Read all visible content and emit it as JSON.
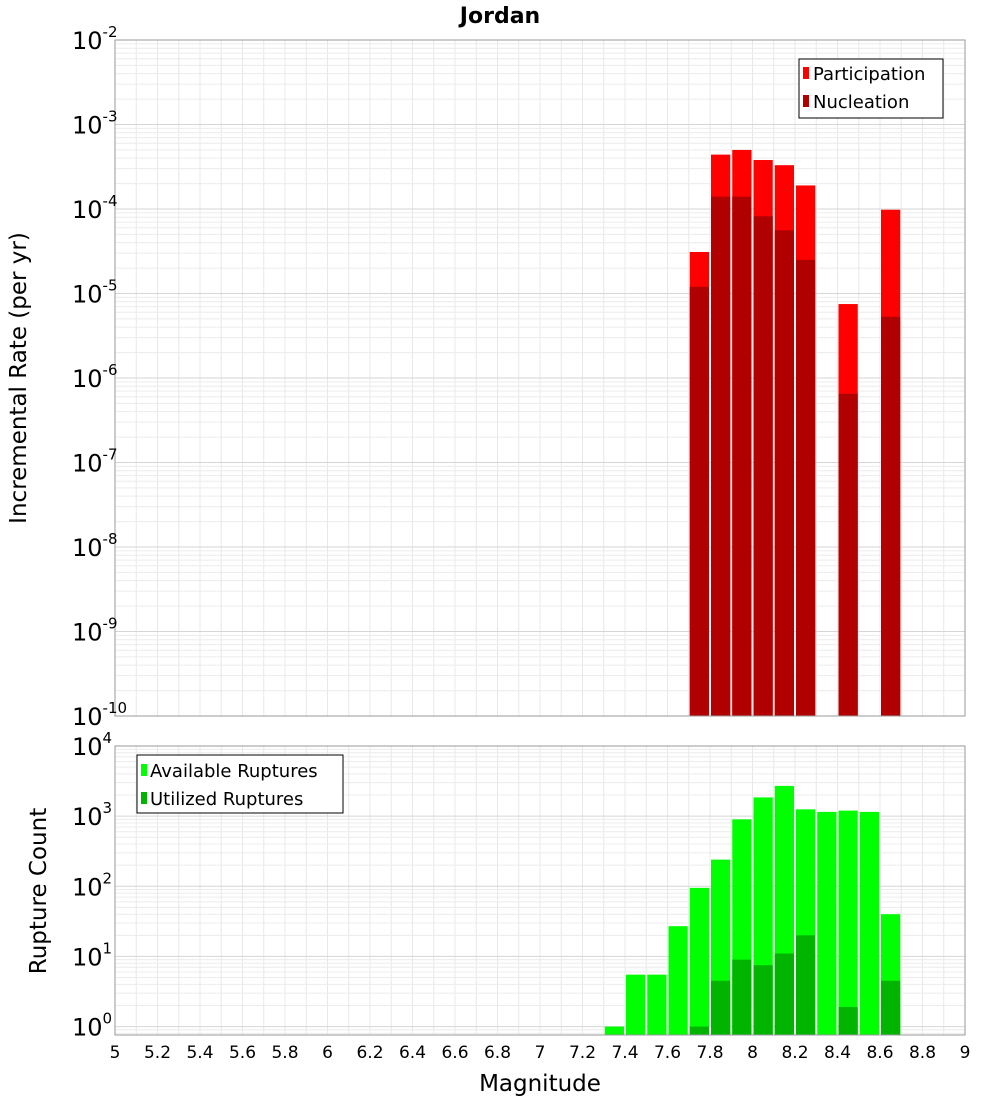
{
  "chart_data": [
    {
      "type": "bar",
      "title": "Jordan",
      "xlabel": "Magnitude",
      "ylabel": "Incremental Rate (per yr)",
      "yscale": "log",
      "xlim": [
        5,
        9
      ],
      "ylim_exponents": [
        -10,
        -2
      ],
      "yticks": [
        {
          "base": "10",
          "exp": "-2"
        },
        {
          "base": "10",
          "exp": "-3"
        },
        {
          "base": "10",
          "exp": "-4"
        },
        {
          "base": "10",
          "exp": "-5"
        },
        {
          "base": "10",
          "exp": "-6"
        },
        {
          "base": "10",
          "exp": "-7"
        },
        {
          "base": "10",
          "exp": "-8"
        },
        {
          "base": "10",
          "exp": "-9"
        },
        {
          "base": "10",
          "exp": "-10"
        }
      ],
      "legend": {
        "position": "top-right",
        "entries": [
          "Participation",
          "Nucleation"
        ]
      },
      "bar_width": 0.1,
      "series": [
        {
          "name": "Participation",
          "color": "#ff0000",
          "x": [
            7.75,
            7.85,
            7.95,
            8.05,
            8.15,
            8.25,
            8.45,
            8.65
          ],
          "values": [
            3.1e-05,
            0.00044,
            0.0005,
            0.00038,
            0.00033,
            0.00019,
            7.5e-06,
            9.8e-05
          ]
        },
        {
          "name": "Nucleation",
          "color": "#b00000",
          "x": [
            7.75,
            7.85,
            7.95,
            8.05,
            8.15,
            8.25,
            8.45,
            8.65
          ],
          "values": [
            1.2e-05,
            0.00014,
            0.00014,
            8.2e-05,
            5.6e-05,
            2.5e-05,
            6.5e-07,
            5.3e-06
          ]
        }
      ]
    },
    {
      "type": "bar",
      "title": "",
      "xlabel": "Magnitude",
      "ylabel": "Rupture Count",
      "yscale": "log",
      "xlim": [
        5,
        9
      ],
      "ylim_exponents": [
        -0.12,
        4
      ],
      "yticks": [
        {
          "base": "10",
          "exp": "4"
        },
        {
          "base": "10",
          "exp": "3"
        },
        {
          "base": "10",
          "exp": "2"
        },
        {
          "base": "10",
          "exp": "1"
        },
        {
          "base": "10",
          "exp": "0"
        }
      ],
      "xticks": [
        "5",
        "5.2",
        "5.4",
        "5.6",
        "5.8",
        "6",
        "6.2",
        "6.4",
        "6.6",
        "6.8",
        "7",
        "7.2",
        "7.4",
        "7.6",
        "7.8",
        "8",
        "8.2",
        "8.4",
        "8.6",
        "8.8",
        "9"
      ],
      "legend": {
        "position": "top-left",
        "entries": [
          "Available Ruptures",
          "Utilized Ruptures"
        ]
      },
      "bar_width": 0.1,
      "series": [
        {
          "name": "Available Ruptures",
          "color": "#00ff00",
          "x": [
            7.35,
            7.45,
            7.55,
            7.65,
            7.75,
            7.85,
            7.95,
            8.05,
            8.15,
            8.25,
            8.35,
            8.45,
            8.55,
            8.65
          ],
          "values": [
            1,
            5.5,
            5.5,
            27,
            95,
            240,
            900,
            1850,
            2700,
            1250,
            1150,
            1200,
            1150,
            40
          ]
        },
        {
          "name": "Utilized Ruptures",
          "color": "#00b400",
          "x": [
            7.75,
            7.85,
            7.95,
            8.05,
            8.15,
            8.25,
            8.45,
            8.65
          ],
          "values": [
            1,
            4.5,
            9,
            7.5,
            11,
            20,
            1.9,
            4.5
          ]
        }
      ]
    }
  ]
}
